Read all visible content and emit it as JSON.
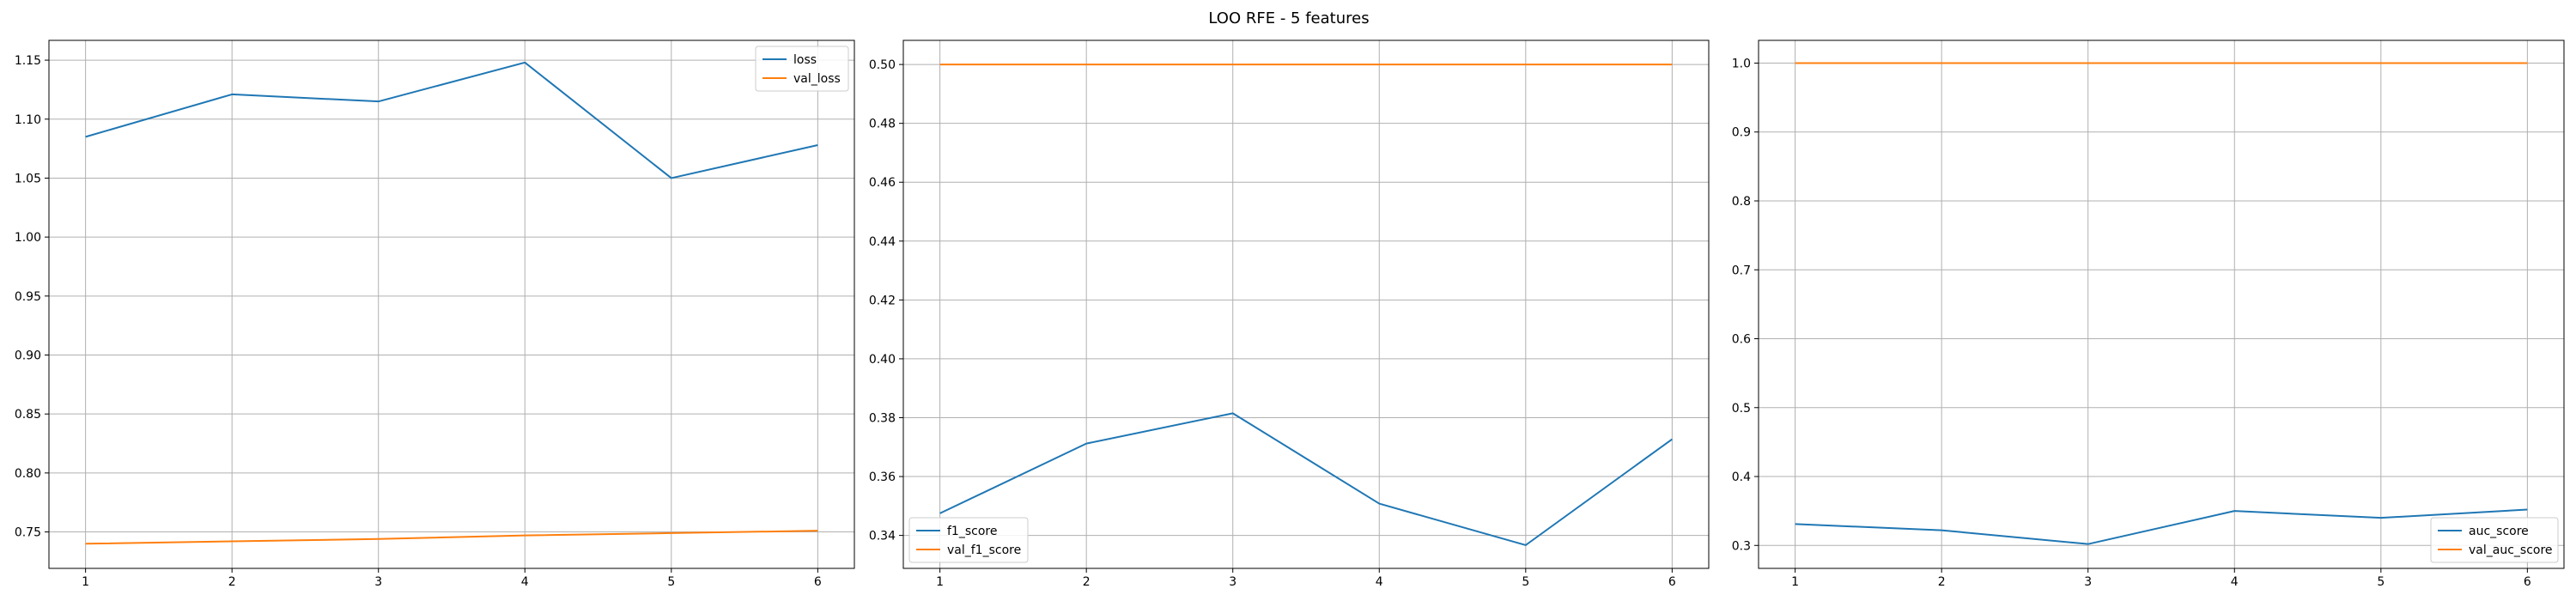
{
  "suptitle": "LOO RFE - 5 features",
  "colors": {
    "series1": "#1f77b4",
    "series2": "#ff7f0e",
    "grid": "#b0b0b0"
  },
  "chart_data": [
    {
      "type": "line",
      "x": [
        1,
        2,
        3,
        4,
        5,
        6
      ],
      "xlim": [
        0.75,
        6.25
      ],
      "ylim": [
        0.7191,
        1.1668
      ],
      "xticks": [
        1,
        2,
        3,
        4,
        5,
        6
      ],
      "yticks": [
        "0.75",
        "0.80",
        "0.85",
        "0.90",
        "0.95",
        "1.00",
        "1.05",
        "1.10",
        "1.15"
      ],
      "grid": true,
      "legend": "top-right",
      "series": [
        {
          "name": "loss",
          "values": [
            1.085,
            1.121,
            1.115,
            1.148,
            1.05,
            1.078
          ]
        },
        {
          "name": "val_loss",
          "values": [
            0.74,
            0.742,
            0.744,
            0.747,
            0.749,
            0.751
          ]
        }
      ]
    },
    {
      "type": "line",
      "x": [
        1,
        2,
        3,
        4,
        5,
        6
      ],
      "xlim": [
        0.75,
        6.25
      ],
      "ylim": [
        0.3288,
        0.5082
      ],
      "xticks": [
        1,
        2,
        3,
        4,
        5,
        6
      ],
      "yticks": [
        "0.34",
        "0.36",
        "0.38",
        "0.40",
        "0.42",
        "0.44",
        "0.46",
        "0.48",
        "0.50"
      ],
      "grid": true,
      "legend": "bottom-left",
      "series": [
        {
          "name": "f1_score",
          "values": [
            0.3475,
            0.3712,
            0.3815,
            0.3508,
            0.3367,
            0.3727
          ]
        },
        {
          "name": "val_f1_score",
          "values": [
            0.5,
            0.5,
            0.5,
            0.5,
            0.5,
            0.5
          ]
        }
      ]
    },
    {
      "type": "line",
      "x": [
        1,
        2,
        3,
        4,
        5,
        6
      ],
      "xlim": [
        0.75,
        6.25
      ],
      "ylim": [
        0.2667,
        1.033
      ],
      "xticks": [
        1,
        2,
        3,
        4,
        5,
        6
      ],
      "yticks": [
        "0.3",
        "0.4",
        "0.5",
        "0.6",
        "0.7",
        "0.8",
        "0.9",
        "1.0"
      ],
      "grid": true,
      "legend": "bottom-right",
      "series": [
        {
          "name": "auc_score",
          "values": [
            0.331,
            0.322,
            0.302,
            0.35,
            0.34,
            0.352
          ]
        },
        {
          "name": "val_auc_score",
          "values": [
            1.0,
            1.0,
            1.0,
            1.0,
            1.0,
            1.0
          ]
        }
      ]
    }
  ]
}
